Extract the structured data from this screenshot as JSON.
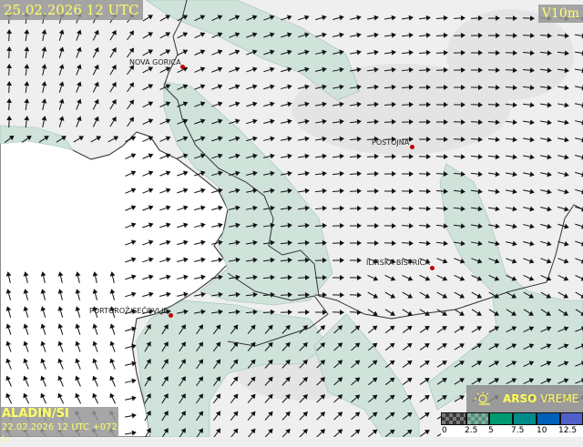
{
  "header": {
    "valid_time": "25.02.2026 12 UTC",
    "parameter": "V10m"
  },
  "model": {
    "name": "ALADIN/SI",
    "run": "22.02.2026 12 UTC +072 h"
  },
  "brand": {
    "bold": "ARSO",
    "rest": " VREME",
    "icon": "sun-cloud-icon"
  },
  "cities": [
    {
      "name": "NOVA GORICA"
    },
    {
      "name": "POSTOJNA"
    },
    {
      "name": "ILIRSKA BISTRICA"
    },
    {
      "name": "PORTOROŽ/SEČOVLJE"
    }
  ],
  "legend": {
    "labels": [
      "0",
      "2.5",
      "5",
      "7.5",
      "10",
      "12.5"
    ],
    "colors": [
      "#5a5a5a",
      "#6a9a88",
      "#009a70",
      "#008a8a",
      "#0060b8",
      "#5060c8"
    ]
  },
  "colors": {
    "shade": "#cfe3da",
    "sea": "#ffffff",
    "land": "#efefef",
    "border": "#333333",
    "text": "#ffff66"
  }
}
